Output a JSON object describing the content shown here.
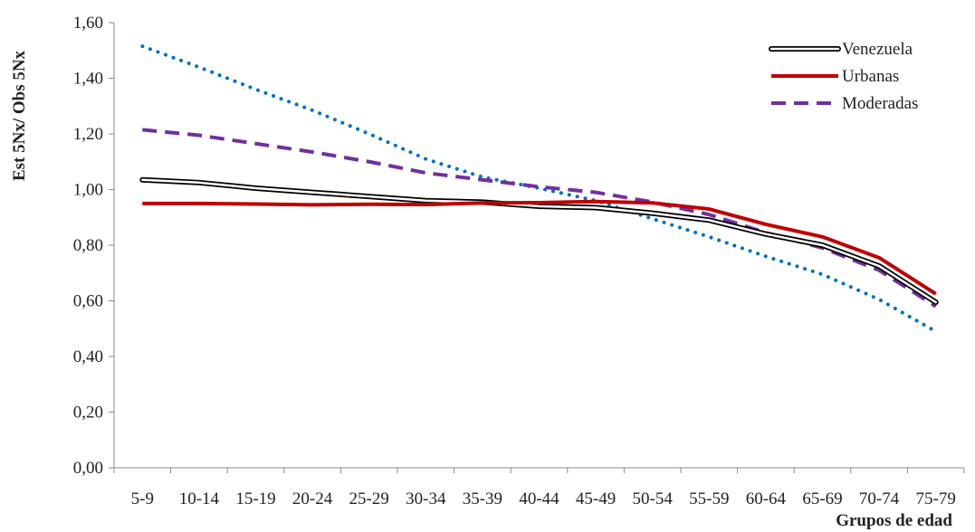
{
  "chart_data": {
    "type": "line",
    "xlabel": "Grupos de edad",
    "ylabel": "Est 5Nx/ Obs 5Nx",
    "ylim": [
      0,
      1.6
    ],
    "yticks": [
      "0,00",
      "0,20",
      "0,40",
      "0,60",
      "0,80",
      "1,00",
      "1,20",
      "1,40",
      "1,60"
    ],
    "categories": [
      "5-9",
      "10-14",
      "15-19",
      "20-24",
      "25-29",
      "30-34",
      "35-39",
      "40-44",
      "45-49",
      "50-54",
      "55-59",
      "60-64",
      "65-69",
      "70-74",
      "75-79"
    ],
    "grid": false,
    "legend_position": "top-right",
    "series": [
      {
        "name": "Venezuela",
        "color": "#000000",
        "style": "double",
        "values": [
          1.035,
          1.025,
          1.005,
          0.99,
          0.975,
          0.96,
          0.955,
          0.94,
          0.935,
          0.915,
          0.89,
          0.84,
          0.8,
          0.725,
          0.595
        ]
      },
      {
        "name": "Urbanas",
        "color": "#c00000",
        "style": "solid",
        "values": [
          0.95,
          0.95,
          0.948,
          0.945,
          0.947,
          0.946,
          0.952,
          0.953,
          0.957,
          0.952,
          0.93,
          0.875,
          0.83,
          0.755,
          0.625
        ]
      },
      {
        "name": "Moderadas",
        "color": "#7030a0",
        "style": "dash",
        "values": [
          1.215,
          1.195,
          1.165,
          1.135,
          1.1,
          1.06,
          1.035,
          1.01,
          0.99,
          0.955,
          0.91,
          0.845,
          0.79,
          0.71,
          0.58
        ]
      },
      {
        "color": "#0070c0",
        "style": "dot",
        "values": [
          1.515,
          1.44,
          1.36,
          1.285,
          1.2,
          1.11,
          1.045,
          1.005,
          0.96,
          0.895,
          0.83,
          0.76,
          0.695,
          0.605,
          0.49
        ]
      }
    ]
  }
}
